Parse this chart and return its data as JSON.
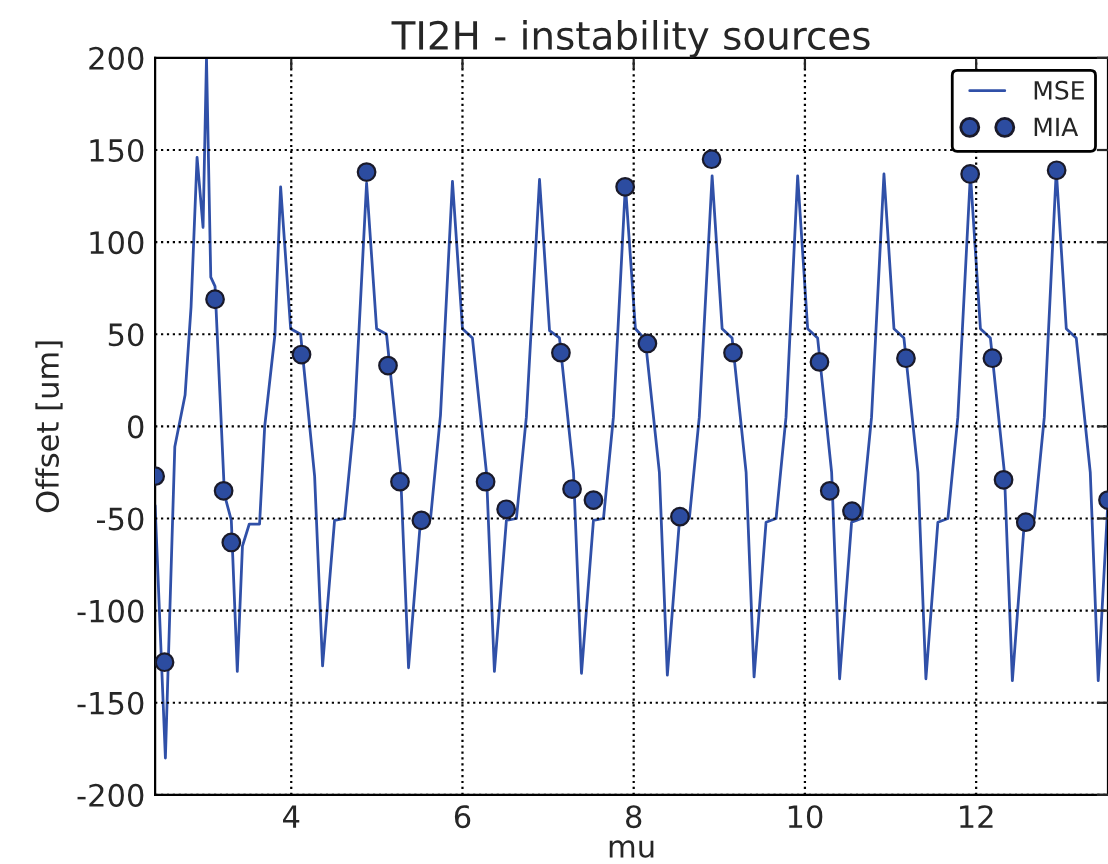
{
  "chart_data": {
    "type": "line",
    "title": "TI2H - instability sources",
    "xlabel": "mu",
    "ylabel": "Offset [um]",
    "xlim": [
      2.41,
      13.54
    ],
    "xticks": [
      4,
      6,
      8,
      10,
      12
    ],
    "ylim": [
      -200,
      200
    ],
    "yticks": [
      -200,
      -150,
      -100,
      -50,
      0,
      50,
      100,
      150,
      200
    ],
    "grid": true,
    "legend": "top right",
    "series": [
      {
        "name": "MSE",
        "color": "#3050a8",
        "marker": "none",
        "line_style": "solid",
        "x": [
          2.41,
          2.53,
          2.64,
          2.76,
          2.83,
          2.9,
          2.97,
          3.01,
          3.06,
          3.11,
          3.22,
          3.3,
          3.37,
          3.43,
          3.51,
          3.63,
          3.69,
          3.81,
          3.876,
          3.993,
          4.109,
          4.273,
          4.366,
          4.506,
          4.623,
          4.739,
          4.88,
          4.997,
          5.113,
          5.277,
          5.37,
          5.51,
          5.627,
          5.743,
          5.883,
          6.0,
          6.116,
          6.28,
          6.373,
          6.513,
          6.63,
          6.746,
          6.9,
          7.017,
          7.133,
          7.297,
          7.39,
          7.53,
          7.647,
          7.763,
          7.903,
          8.02,
          8.136,
          8.3,
          8.393,
          8.533,
          8.65,
          8.766,
          8.916,
          9.033,
          9.149,
          9.313,
          9.406,
          9.546,
          9.663,
          9.779,
          9.915,
          10.032,
          10.148,
          10.312,
          10.405,
          10.545,
          10.662,
          10.778,
          10.923,
          11.04,
          11.156,
          11.32,
          11.413,
          11.553,
          11.67,
          11.786,
          11.933,
          12.05,
          12.166,
          12.33,
          12.423,
          12.563,
          12.68,
          12.796,
          12.936,
          13.053,
          13.169,
          13.333,
          13.426,
          13.54
        ],
        "values": [
          -43,
          -180,
          -11,
          17,
          65,
          146,
          108,
          200,
          81,
          76,
          -37,
          -51,
          -133,
          -65,
          -53,
          -53,
          0,
          50,
          130,
          53,
          50,
          -27,
          -130,
          -51,
          -50,
          5,
          132,
          53,
          50,
          -25,
          -131,
          -51,
          -50,
          6,
          133,
          53,
          48,
          -25,
          -133,
          -51,
          -50,
          5,
          134,
          52,
          48,
          -25,
          -134,
          -51,
          -50,
          5,
          131,
          53,
          47,
          -25,
          -135,
          -52,
          -50,
          5,
          136,
          53,
          48,
          -25,
          -136,
          -52,
          -50,
          5,
          136,
          53,
          48,
          -25,
          -137,
          -52,
          -50,
          5,
          137,
          53,
          48,
          -25,
          -137,
          -52,
          -50,
          5,
          137,
          53,
          48,
          -25,
          -138,
          -52,
          -50,
          5,
          139,
          53,
          48,
          -25,
          -138,
          -40
        ]
      },
      {
        "name": "MIA",
        "type": "scatter",
        "color": "#2c4ca0",
        "marker": "circle",
        "x": [
          2.41,
          2.52,
          3.11,
          3.21,
          3.3,
          4.12,
          4.88,
          5.13,
          5.27,
          5.52,
          6.27,
          6.51,
          7.15,
          7.28,
          7.53,
          7.9,
          8.16,
          8.54,
          8.91,
          9.16,
          10.17,
          10.29,
          10.55,
          11.18,
          11.93,
          12.19,
          12.32,
          12.58,
          12.94,
          13.54
        ],
        "values": [
          -27,
          -128,
          69,
          -35,
          -63,
          39,
          138,
          33,
          -30,
          -51,
          -30,
          -45,
          40,
          -34,
          -40,
          130,
          45,
          -49,
          145,
          40,
          35,
          -35,
          -46,
          37,
          137,
          37,
          -29,
          -52,
          139,
          -40
        ]
      }
    ]
  }
}
